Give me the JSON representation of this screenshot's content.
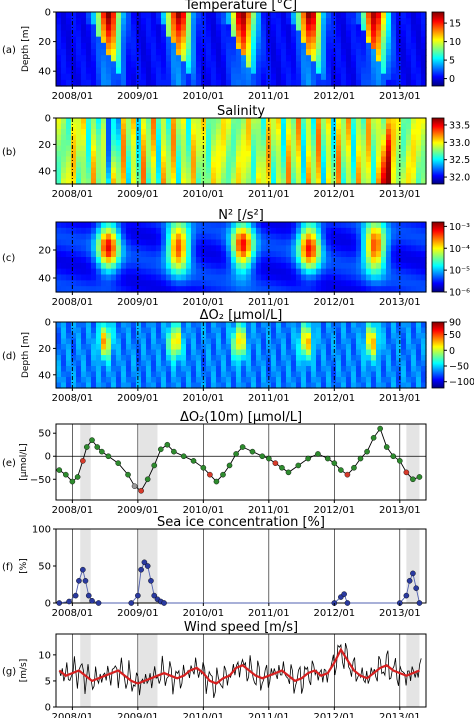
{
  "figure": {
    "x_tick_labels": [
      "2008/01",
      "2009/01",
      "2010/01",
      "2011/01",
      "2012/01",
      "2013/01"
    ],
    "x_tick_values": [
      2008,
      2009,
      2010,
      2011,
      2012,
      2013
    ],
    "x_range": [
      2007.75,
      2013.4
    ]
  },
  "chart_data": [
    {
      "panel": "(a)",
      "type": "heatmap",
      "title": "Temperature [°C]",
      "ylabel": "Depth [m]",
      "yticks": [
        0,
        20,
        40
      ],
      "ylim": [
        50,
        0
      ],
      "colorbar": {
        "ticks": [
          "15",
          "10",
          "5",
          "0"
        ],
        "tick_values": [
          15,
          10,
          5,
          0
        ],
        "range": [
          -2,
          18
        ],
        "colormap": "jet"
      },
      "warm_season_centers": [
        2008.55,
        2009.62,
        2010.6,
        2011.62,
        2012.62
      ]
    },
    {
      "panel": "(b)",
      "type": "heatmap",
      "title": "Salinity",
      "ylabel": "",
      "yticks": [
        0,
        20,
        40
      ],
      "ylim": [
        50,
        0
      ],
      "colorbar": {
        "ticks": [
          "33.5",
          "33.0",
          "32.5",
          "32.0"
        ],
        "tick_values": [
          33.5,
          33.0,
          32.5,
          32.0
        ],
        "range": [
          31.8,
          33.7
        ],
        "colormap": "jet"
      }
    },
    {
      "panel": "(c)",
      "type": "heatmap",
      "title": "N² [/s²]",
      "ylabel": "",
      "yticks": [
        20,
        40
      ],
      "ylim": [
        50,
        0
      ],
      "colorbar": {
        "ticks": [
          "10⁻³",
          "10⁻⁴",
          "10⁻⁵",
          "10⁻⁶"
        ],
        "tick_values": [
          -3,
          -4,
          -5,
          -6
        ],
        "range": [
          -6,
          -2.8
        ],
        "colormap": "jet",
        "scale": "log"
      }
    },
    {
      "panel": "(d)",
      "type": "heatmap",
      "title": "ΔO₂ [μmol/L]",
      "ylabel": "Depth [m]",
      "yticks": [
        0,
        20,
        40
      ],
      "ylim": [
        50,
        0
      ],
      "colorbar": {
        "ticks": [
          "90",
          "50",
          "0",
          "−50",
          "−100"
        ],
        "tick_values": [
          90,
          50,
          0,
          -50,
          -100
        ],
        "range": [
          -120,
          90
        ],
        "colormap": "jet"
      }
    },
    {
      "panel": "(e)",
      "type": "line",
      "title": "ΔO₂(10m) [μmol/L]",
      "ylabel": "[μmol/L]",
      "yticks": [
        "50",
        "0",
        "−50"
      ],
      "ytick_values": [
        50,
        0,
        -50
      ],
      "ylim": [
        -95,
        70
      ],
      "series": [
        {
          "x": [
            2007.8,
            2007.9,
            2008.0,
            2008.08,
            2008.16,
            2008.22,
            2008.3,
            2008.38,
            2008.45,
            2008.55,
            2008.7,
            2008.85,
            2008.95,
            2009.05,
            2009.15,
            2009.25,
            2009.35,
            2009.45,
            2009.55,
            2009.7,
            2009.85,
            2010.0,
            2010.1,
            2010.2,
            2010.3,
            2010.4,
            2010.5,
            2010.6,
            2010.75,
            2010.9,
            2011.0,
            2011.1,
            2011.2,
            2011.3,
            2011.45,
            2011.6,
            2011.75,
            2011.9,
            2012.0,
            2012.1,
            2012.2,
            2012.3,
            2012.4,
            2012.5,
            2012.6,
            2012.7,
            2012.8,
            2012.9,
            2013.0,
            2013.1,
            2013.2,
            2013.3
          ],
          "y": [
            -30,
            -40,
            -55,
            -45,
            -10,
            20,
            35,
            20,
            10,
            0,
            -15,
            -40,
            -65,
            -75,
            -50,
            -20,
            15,
            25,
            10,
            0,
            -10,
            -25,
            -40,
            -55,
            -40,
            -20,
            5,
            20,
            10,
            0,
            -5,
            -15,
            -25,
            -35,
            -20,
            -5,
            5,
            -5,
            -15,
            -30,
            -40,
            -25,
            -5,
            10,
            40,
            60,
            20,
            0,
            -10,
            -35,
            -50,
            -45
          ]
        }
      ]
    },
    {
      "panel": "(f)",
      "type": "line",
      "title": "Sea ice concentration [%]",
      "ylabel": "[%]",
      "yticks": [
        "100",
        "50",
        "0"
      ],
      "ytick_values": [
        100,
        50,
        0
      ],
      "ylim": [
        0,
        100
      ],
      "series": [
        {
          "x": [
            2007.8,
            2007.95,
            2008.05,
            2008.1,
            2008.16,
            2008.2,
            2008.25,
            2008.3,
            2008.4,
            2008.9,
            2009.0,
            2009.05,
            2009.1,
            2009.15,
            2009.2,
            2009.25,
            2009.3,
            2009.35,
            2009.4,
            2012.0,
            2012.1,
            2012.15,
            2012.2,
            2013.0,
            2013.1,
            2013.15,
            2013.2,
            2013.25,
            2013.3
          ],
          "y": [
            0,
            2,
            10,
            30,
            45,
            30,
            10,
            3,
            0,
            0,
            10,
            45,
            55,
            50,
            30,
            10,
            5,
            2,
            0,
            0,
            8,
            12,
            0,
            0,
            10,
            30,
            40,
            20,
            0
          ]
        }
      ]
    },
    {
      "panel": "(g)",
      "type": "line",
      "title": "Wind speed [m/s]",
      "ylabel": "[m/s]",
      "yticks": [
        "10",
        "5",
        "0"
      ],
      "ytick_values": [
        10,
        5,
        0
      ],
      "ylim": [
        0,
        14
      ],
      "series": [
        {
          "x": [
            2007.8,
            2007.9,
            2008.0,
            2008.1,
            2008.2,
            2008.3,
            2008.4,
            2008.5,
            2008.6,
            2008.7,
            2008.8,
            2008.9,
            2009.0,
            2009.1,
            2009.2,
            2009.3,
            2009.4,
            2009.5,
            2009.6,
            2009.7,
            2009.8,
            2009.9,
            2010.0,
            2010.1,
            2010.2,
            2010.3,
            2010.4,
            2010.5,
            2010.6,
            2010.7,
            2010.8,
            2010.9,
            2011.0,
            2011.1,
            2011.2,
            2011.3,
            2011.4,
            2011.5,
            2011.6,
            2011.7,
            2011.8,
            2011.9,
            2012.0,
            2012.1,
            2012.2,
            2012.3,
            2012.4,
            2012.5,
            2012.6,
            2012.7,
            2012.8,
            2012.9,
            2013.0,
            2013.1,
            2013.2,
            2013.3
          ],
          "y": [
            7,
            6,
            6.5,
            7,
            6,
            5,
            5.5,
            6,
            6.5,
            7,
            6,
            5,
            4.5,
            5,
            5.5,
            6,
            6.5,
            6,
            5.5,
            6,
            7,
            7.5,
            6.5,
            5,
            4.5,
            5.5,
            6,
            7.5,
            8,
            7,
            6,
            5.5,
            6,
            6.5,
            7,
            6,
            5,
            5.5,
            6.5,
            7,
            6,
            6.5,
            8.5,
            11,
            9,
            7,
            6,
            5.5,
            6.5,
            7.5,
            8,
            7,
            6.5,
            6,
            6.5,
            7
          ]
        }
      ]
    }
  ]
}
